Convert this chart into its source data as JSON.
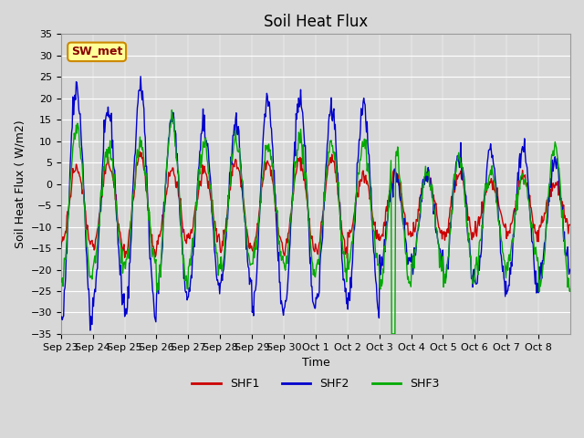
{
  "title": "Soil Heat Flux",
  "ylabel": "Soil Heat Flux ( W/m2)",
  "xlabel": "Time",
  "ylim": [
    -35,
    35
  ],
  "yticks": [
    -35,
    -30,
    -25,
    -20,
    -15,
    -10,
    -5,
    0,
    5,
    10,
    15,
    20,
    25,
    30,
    35
  ],
  "xtick_labels": [
    "Sep 23",
    "Sep 24",
    "Sep 25",
    "Sep 26",
    "Sep 27",
    "Sep 28",
    "Sep 29",
    "Sep 30",
    "Oct 1",
    "Oct 2",
    "Oct 3",
    "Oct 4",
    "Oct 5",
    "Oct 6",
    "Oct 7",
    "Oct 8"
  ],
  "shf1_color": "#cc0000",
  "shf2_color": "#0000cc",
  "shf3_color": "#00aa00",
  "plot_bg_color": "#d8d8d8",
  "annotation_text": "SW_met",
  "annotation_bg": "#ffff99",
  "annotation_border": "#cc8800",
  "annotation_text_color": "#880000",
  "legend_entries": [
    "SHF1",
    "SHF2",
    "SHF3"
  ]
}
